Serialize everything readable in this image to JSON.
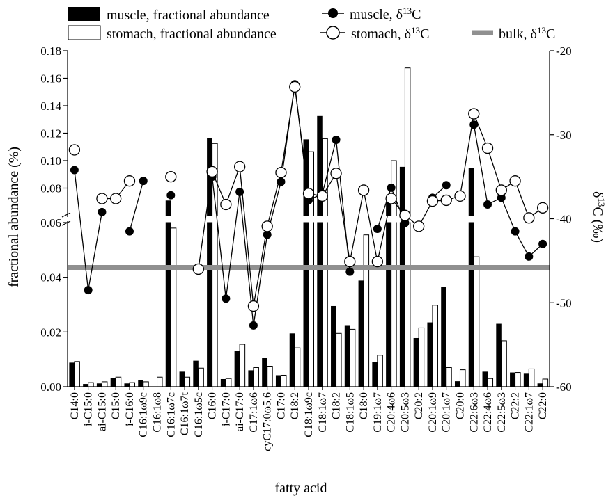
{
  "chart_data": {
    "type": "bar",
    "xlabel": "fatty acid",
    "ylabel": "fractional abundance (%)",
    "y2label": "δ13C (‰)",
    "y2label_base": "δ",
    "y2label_sup": "13",
    "y2label_rest": "C (‰)",
    "ylim": [
      0,
      0.18
    ],
    "y_axis_break": [
      0.06,
      0.065
    ],
    "yticks": [
      "0.00",
      "0.02",
      "0.04",
      "0.06",
      "0.08",
      "0.10",
      "0.12",
      "0.14",
      "0.16",
      "0.18"
    ],
    "y2lim": [
      -60,
      -20
    ],
    "y2ticks": [
      "-60",
      "-50",
      "-40",
      "-30",
      "-20"
    ],
    "categories": [
      "C14:0",
      "i-C15:0",
      "ai-C15:0",
      "C15:0",
      "i-C16:0",
      "C16:1ω9c",
      "C16:1ω8",
      "C16:1ω7c",
      "C16:1ω7t",
      "C16:1ω5c",
      "C16:0",
      "i-C17:0",
      "ai-C17:0",
      "C17:1ω6",
      "cyC17:0ω5,6",
      "C17:0",
      "C18:2",
      "C18:1ω9c",
      "C18:1ω7",
      "C18:2",
      "C18:1ω5",
      "C18:0",
      "C19:1ω7",
      "C20:4ω6",
      "C20:5ω3",
      "C20:2",
      "C20:1ω9",
      "C20:1ω7",
      "C20:0",
      "C22:6ω3",
      "C22:4ω6",
      "C22:5ω3",
      "C22:2",
      "C22:1ω7",
      "C22:0"
    ],
    "series": [
      {
        "name": "muscle, fractional abundance",
        "kind": "bar",
        "color": "#000000",
        "values": [
          0.0088,
          0.001,
          0.0012,
          0.0032,
          0.0012,
          0.0025,
          0.0,
          0.071,
          0.0055,
          0.0095,
          0.1165,
          0.0028,
          0.013,
          0.006,
          0.0105,
          0.0042,
          0.0195,
          0.1155,
          0.1325,
          0.0295,
          0.0225,
          0.0388,
          0.009,
          0.0705,
          0.0955,
          0.0178,
          0.0235,
          0.0365,
          0.002,
          0.0945,
          0.0055,
          0.023,
          0.0052,
          0.005,
          0.0012
        ]
      },
      {
        "name": "stomach, fractional abundance",
        "kind": "bar",
        "color": "#ffffff",
        "values": [
          0.0092,
          0.0015,
          0.0018,
          0.0035,
          0.0015,
          0.0018,
          0.0035,
          0.058,
          0.0035,
          0.0068,
          0.1125,
          0.003,
          0.0155,
          0.007,
          0.0075,
          0.0042,
          0.0142,
          0.1065,
          0.116,
          0.0195,
          0.021,
          0.0555,
          0.0115,
          0.1,
          0.1675,
          0.0215,
          0.0298,
          0.007,
          0.0062,
          0.0475,
          0.003,
          0.0168,
          0.0052,
          0.0065,
          0.0028
        ]
      },
      {
        "name": "muscle, δ13C",
        "label_base": "muscle, δ",
        "label_sup": "13",
        "label_rest": "C",
        "kind": "line",
        "marker": "filled-circle",
        "color": "#000000",
        "values": [
          -34.2,
          -48.5,
          -39.2,
          null,
          -41.5,
          -35.5,
          null,
          -37.2,
          null,
          null,
          -35.0,
          -49.5,
          -36.8,
          -52.7,
          -41.9,
          -35.6,
          -24.0,
          -37.8,
          -37.0,
          -30.6,
          -46.3,
          null,
          -41.2,
          -36.3,
          -40.5,
          null,
          -37.5,
          -36.0,
          null,
          -28.8,
          -38.3,
          -37.5,
          -41.5,
          -44.5,
          -43.0
        ]
      },
      {
        "name": "stomach, δ13C",
        "label_base": "stomach, δ",
        "label_sup": "13",
        "label_rest": "C",
        "kind": "line",
        "marker": "open-circle",
        "color": "#000000",
        "values": [
          -31.8,
          null,
          -37.6,
          -37.6,
          -35.5,
          null,
          null,
          -35.0,
          null,
          -46.0,
          -34.4,
          -38.3,
          -33.8,
          -50.4,
          -40.9,
          -34.5,
          -24.3,
          -37.0,
          -37.3,
          -34.6,
          -45.1,
          -36.6,
          -45.1,
          -37.6,
          -39.6,
          -40.9,
          -37.9,
          -37.8,
          -37.3,
          -27.5,
          -31.6,
          -36.6,
          -35.5,
          -39.9,
          -38.7
        ]
      },
      {
        "name": "bulk, δ13C",
        "label_base": "bulk, δ",
        "label_sup": "13",
        "label_rest": "C",
        "kind": "hline",
        "color": "#909090",
        "value": -45.8
      }
    ],
    "legend_position": "top",
    "grid": false
  }
}
